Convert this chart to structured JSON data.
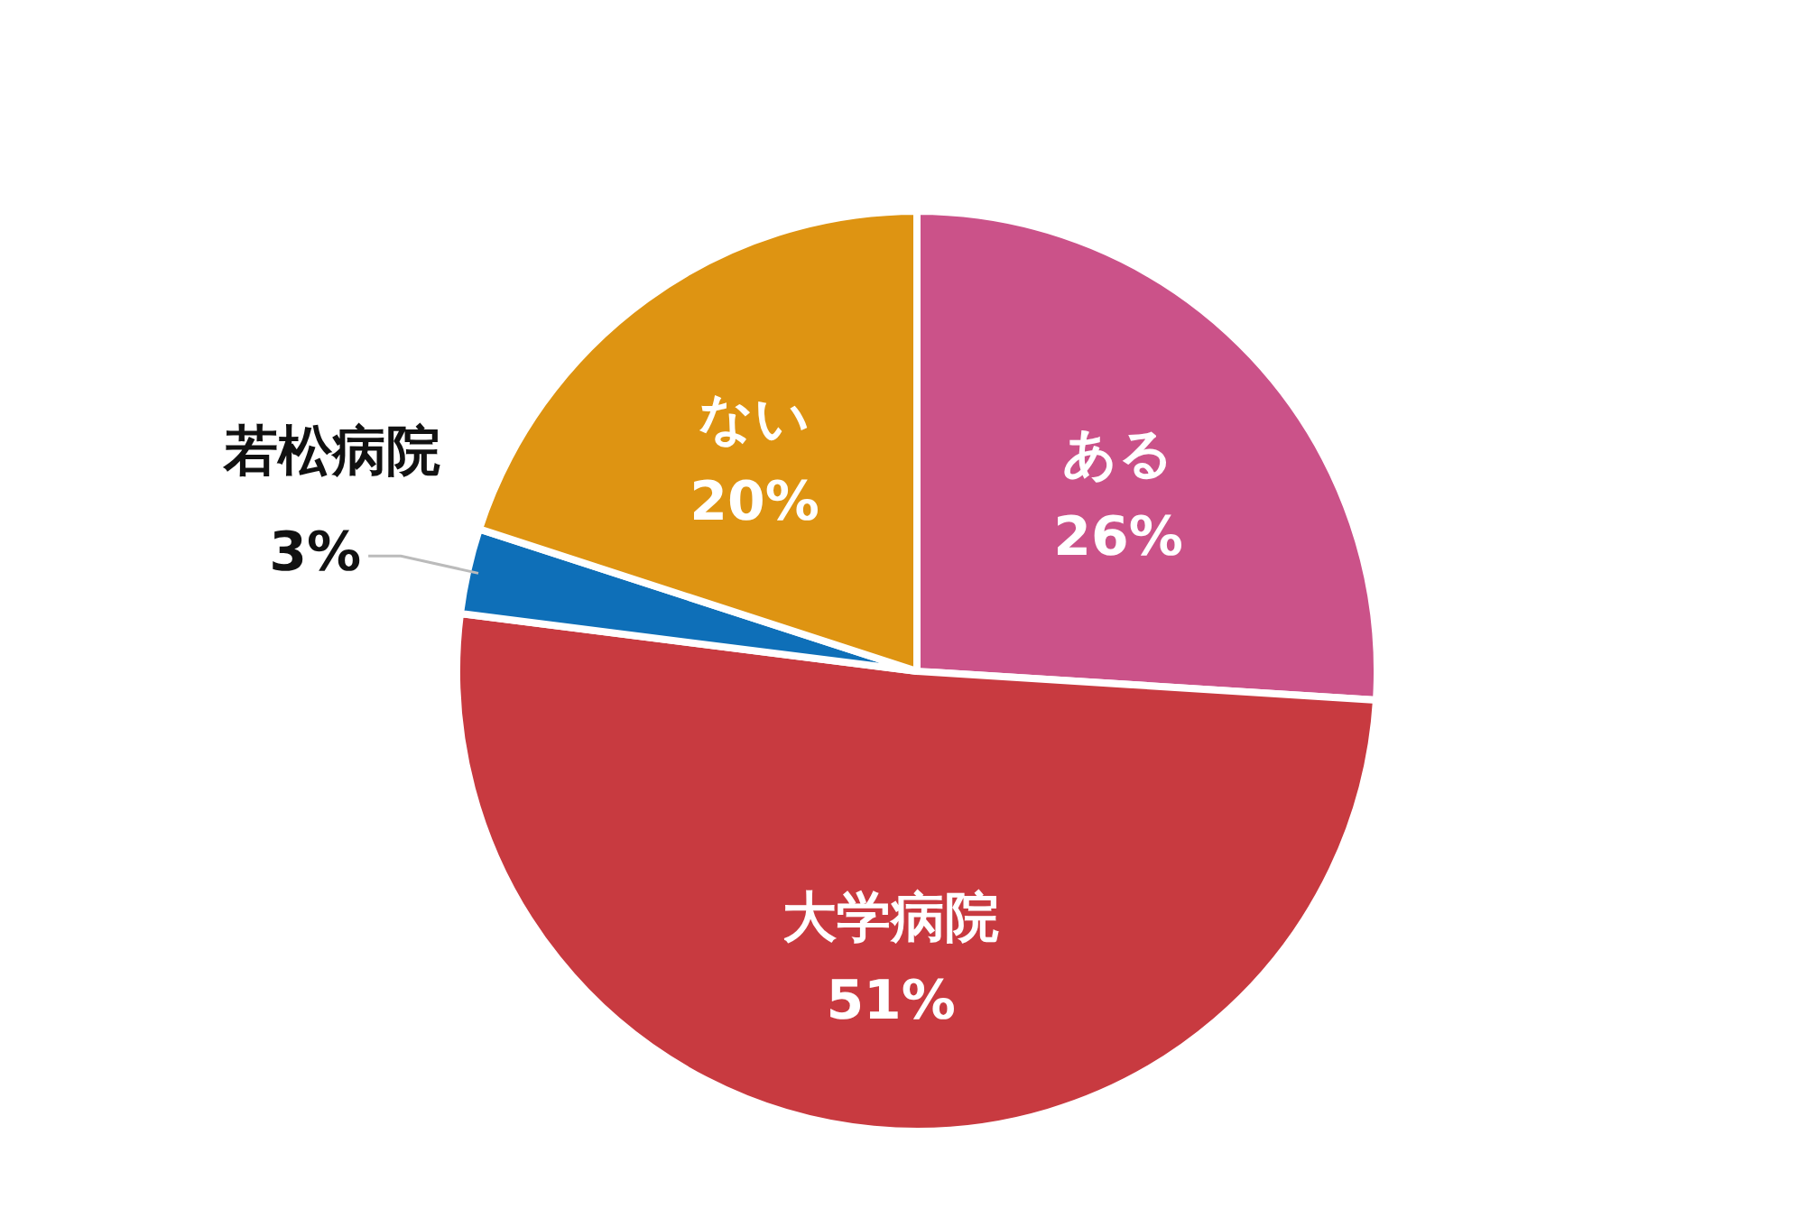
{
  "chart_data": {
    "type": "pie",
    "categories": [
      "ある",
      "大学病院",
      "若松病院",
      "ない"
    ],
    "values": [
      26,
      51,
      3,
      20
    ],
    "colors": [
      "#cb5289",
      "#c83a40",
      "#0e6fb8",
      "#de9412"
    ],
    "value_labels": [
      "26%",
      "51%",
      "3%",
      "20%"
    ]
  }
}
